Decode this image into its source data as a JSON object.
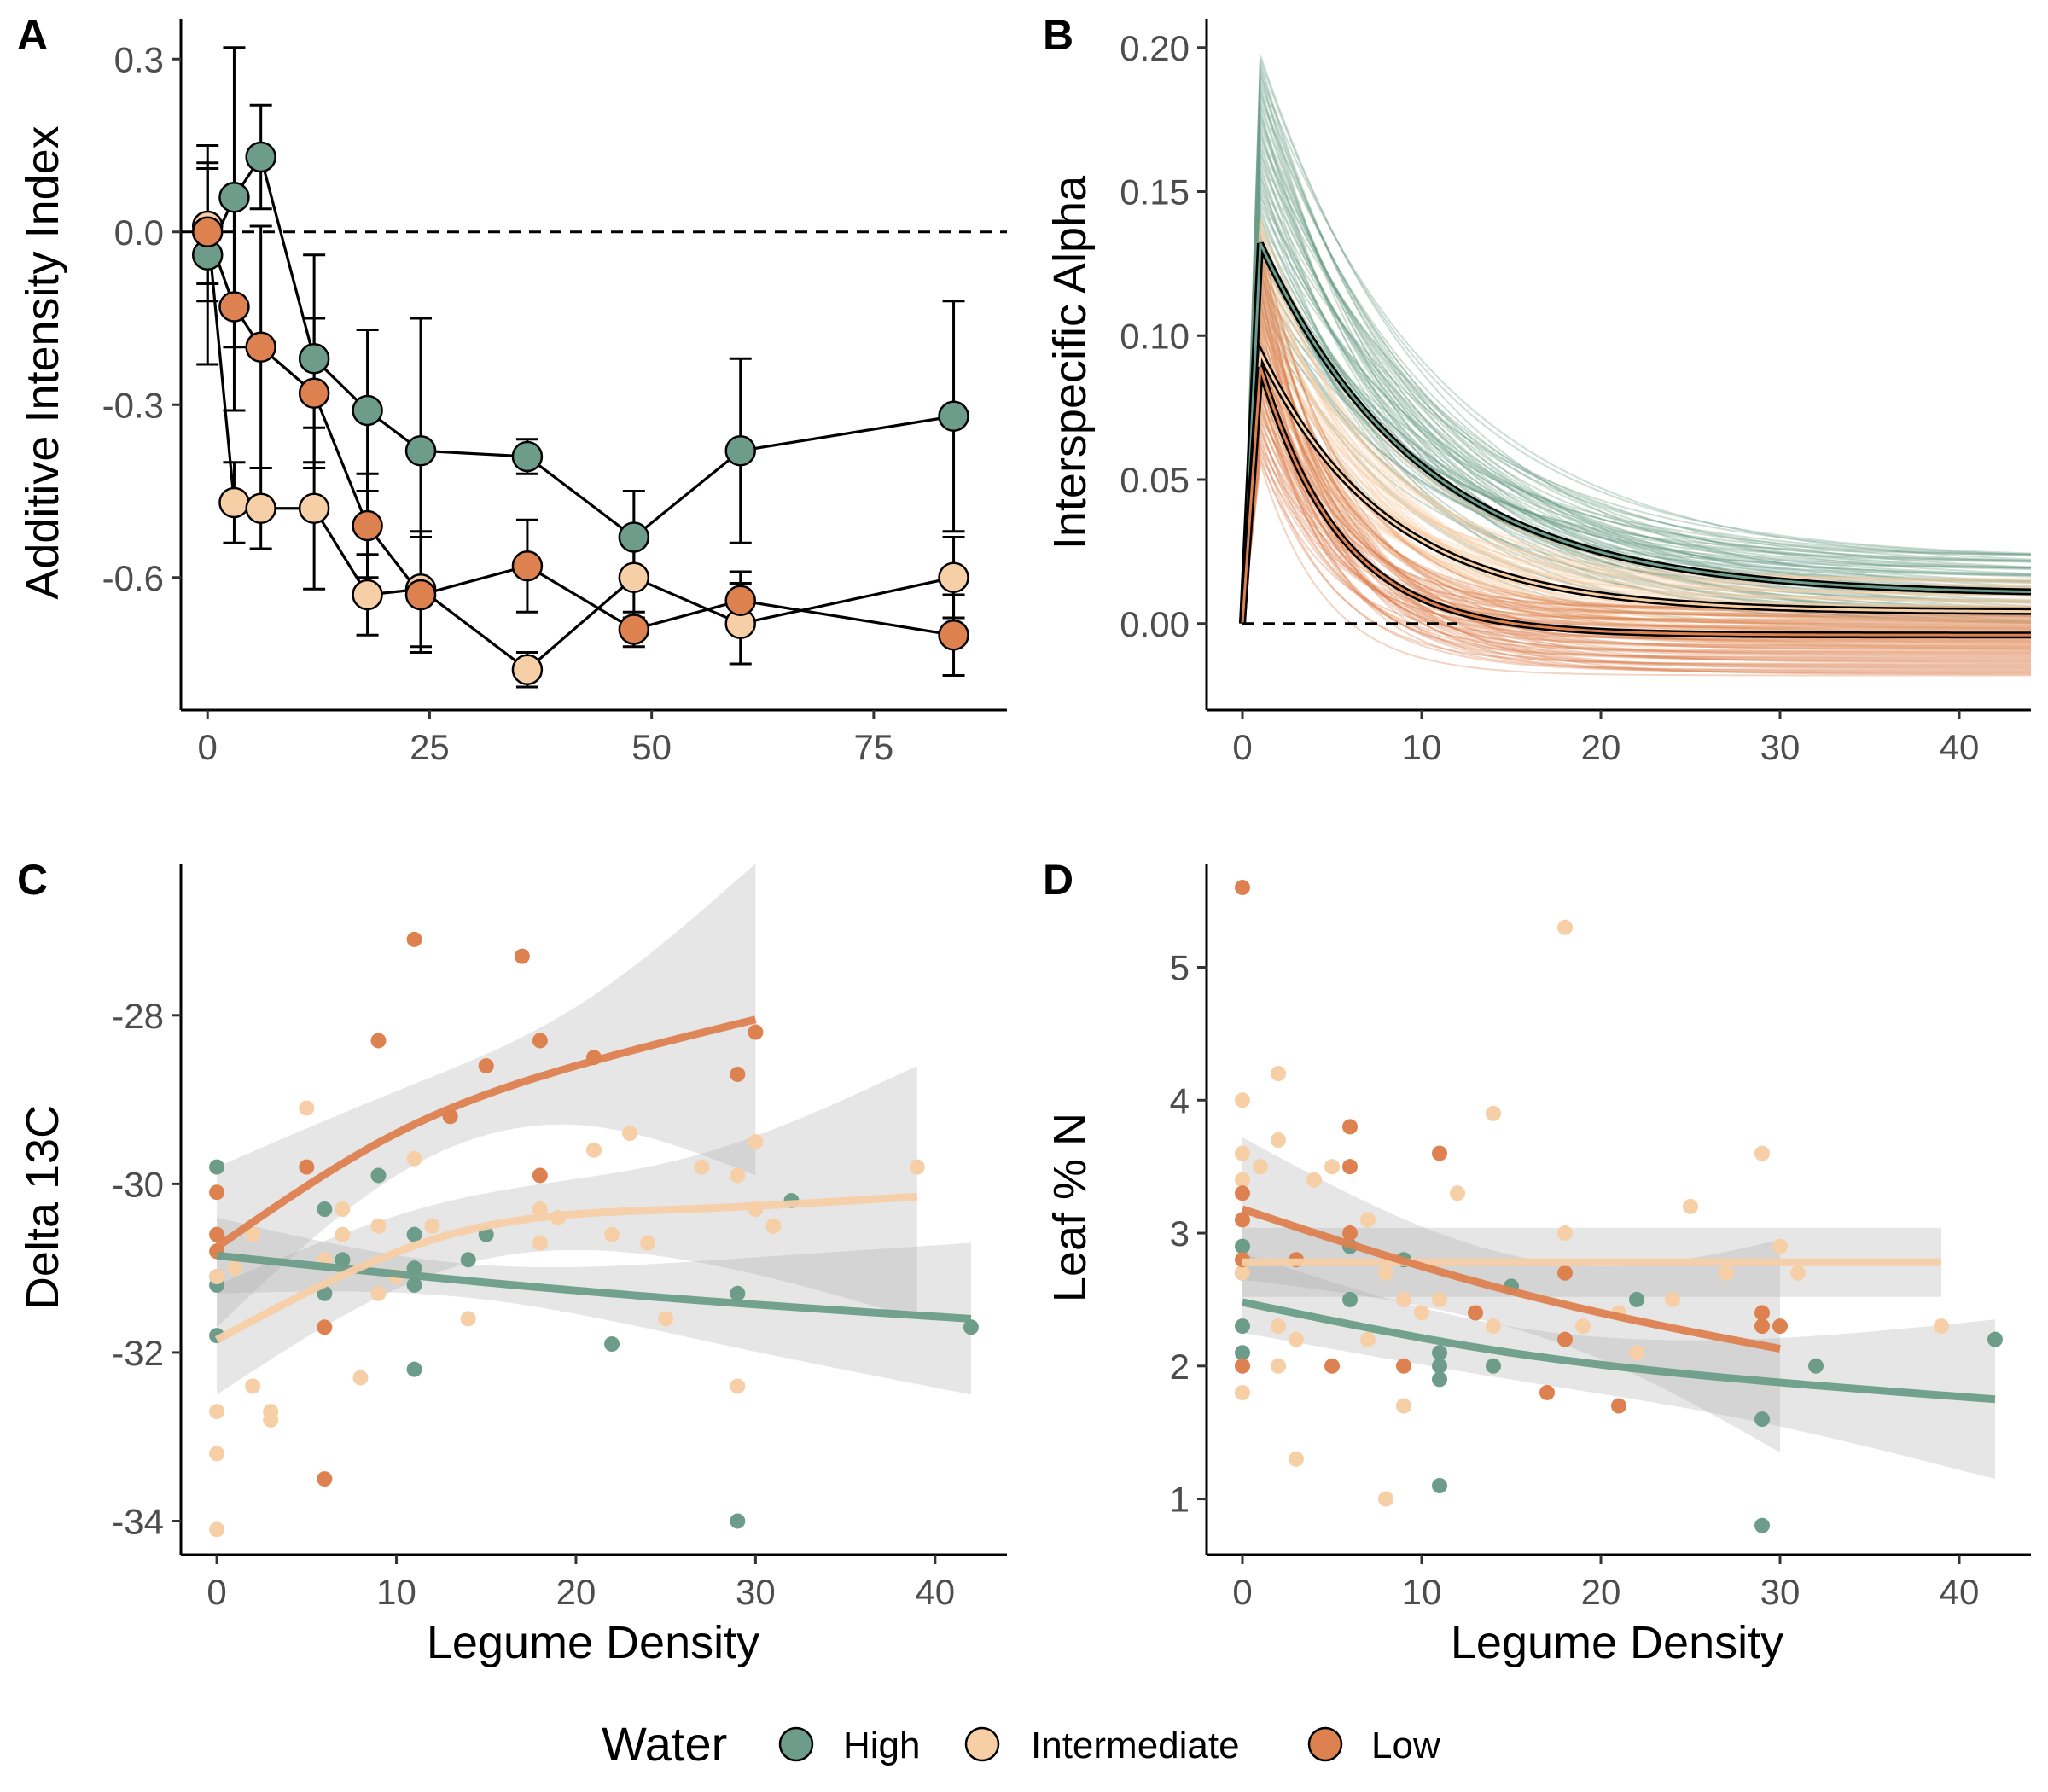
{
  "colors": {
    "High": "#6d9d8a",
    "Intermediate": "#f6cfa6",
    "Low": "#dd8150"
  },
  "legend": {
    "title": "Water",
    "entries": [
      "High",
      "Intermediate",
      "Low"
    ]
  },
  "panels": {
    "A": {
      "letter": "A",
      "ylabel": "Additive Intensity Index",
      "xlabel": ""
    },
    "B": {
      "letter": "B",
      "ylabel": "Interspecific Alpha",
      "xlabel": ""
    },
    "C": {
      "letter": "C",
      "ylabel": "Delta 13C",
      "xlabel": "Legume Density"
    },
    "D": {
      "letter": "D",
      "ylabel": "Leaf % N",
      "xlabel": "Legume Density"
    }
  },
  "chart_data": [
    {
      "id": "A",
      "type": "line",
      "xlim": [
        -3,
        90
      ],
      "ylim": [
        -0.83,
        0.37
      ],
      "xticks": [
        0,
        25,
        50,
        75
      ],
      "yticks": [
        0.3,
        0.0,
        -0.3,
        -0.6
      ],
      "ytick_labels": [
        "0.3",
        "0.0",
        "-0.3",
        "-0.6"
      ],
      "hline": 0,
      "series": [
        {
          "name": "High",
          "x": [
            0,
            3,
            6,
            12,
            18,
            24,
            36,
            48,
            60,
            84
          ],
          "y": [
            -0.04,
            0.06,
            0.13,
            -0.22,
            -0.31,
            -0.38,
            -0.39,
            -0.53,
            -0.38,
            -0.32
          ],
          "err": [
            0.19,
            0.26,
            0.09,
            0.18,
            0.14,
            0.23,
            0.03,
            0.08,
            0.16,
            0.2
          ]
        },
        {
          "name": "Intermediate",
          "x": [
            0,
            3,
            6,
            12,
            18,
            24,
            36,
            48,
            60,
            84
          ],
          "y": [
            0.01,
            -0.47,
            -0.48,
            -0.48,
            -0.63,
            -0.62,
            -0.76,
            -0.6,
            -0.68,
            -0.6
          ],
          "err": [
            0.1,
            0.07,
            0.07,
            0.14,
            0.07,
            0.1,
            0.03,
            0.07,
            0.07,
            0.07
          ]
        },
        {
          "name": "Low",
          "x": [
            0,
            3,
            6,
            12,
            18,
            24,
            36,
            48,
            60,
            84
          ],
          "y": [
            0.0,
            -0.13,
            -0.2,
            -0.28,
            -0.51,
            -0.63,
            -0.58,
            -0.69,
            -0.64,
            -0.7
          ],
          "err": [
            0.12,
            0.18,
            0.21,
            0.13,
            0.09,
            0.1,
            0.08,
            0.03,
            0.05,
            0.07
          ]
        }
      ]
    },
    {
      "id": "B",
      "type": "line",
      "xlim": [
        -2,
        44
      ],
      "ylim": [
        -0.03,
        0.21
      ],
      "xticks": [
        0,
        10,
        20,
        30,
        40
      ],
      "yticks": [
        0.0,
        0.05,
        0.1,
        0.15,
        0.2
      ],
      "ytick_labels": [
        "0.00",
        "0.05",
        "0.10",
        "0.15",
        "0.20"
      ],
      "hline": 0,
      "hline_xmax": 12,
      "series": [
        {
          "name": "High",
          "peak": 0.132,
          "asymptote": 0.01,
          "decay": 9,
          "band_peak": [
            0.105,
            0.198
          ],
          "band_asymptote": [
            -0.002,
            0.024
          ]
        },
        {
          "name": "Intermediate",
          "peak": 0.094,
          "asymptote": 0.004,
          "decay": 7,
          "band_peak": [
            0.07,
            0.142
          ],
          "band_asymptote": [
            -0.01,
            0.016
          ]
        },
        {
          "name": "Low",
          "peak": 0.089,
          "asymptote": -0.004,
          "decay": 4.5,
          "band_peak": [
            0.055,
            0.135
          ],
          "band_asymptote": [
            -0.018,
            0.006
          ]
        }
      ]
    },
    {
      "id": "C",
      "type": "scatter",
      "xlim": [
        -2,
        44
      ],
      "ylim": [
        -34.4,
        -26.2
      ],
      "xticks": [
        0,
        10,
        20,
        30,
        40
      ],
      "yticks": [
        -28,
        -30,
        -32,
        -34
      ],
      "ytick_labels": [
        "-28",
        "-30",
        "-32",
        "-34"
      ],
      "series": [
        {
          "name": "High",
          "points": [
            [
              0,
              -29.8
            ],
            [
              0,
              -31.1
            ],
            [
              0,
              -31.2
            ],
            [
              0,
              -31.8
            ],
            [
              6,
              -30.3
            ],
            [
              6,
              -31.3
            ],
            [
              7,
              -30.9
            ],
            [
              9,
              -29.9
            ],
            [
              11,
              -30.6
            ],
            [
              11,
              -31.0
            ],
            [
              11,
              -31.2
            ],
            [
              11,
              -32.2
            ],
            [
              14,
              -30.9
            ],
            [
              15,
              -30.6
            ],
            [
              22,
              -31.9
            ],
            [
              29,
              -31.3
            ],
            [
              29,
              -34.0
            ],
            [
              32,
              -30.2
            ],
            [
              42,
              -31.7
            ]
          ],
          "fit_x": [
            0,
            42
          ],
          "fit": [
            -30.85,
            -31.15,
            -31.4,
            -31.6
          ],
          "band": [
            [
              -31.3,
              -30.4
            ],
            [
              -31.35,
              -30.95
            ],
            [
              -31.9,
              -30.9
            ],
            [
              -32.5,
              -30.7
            ]
          ]
        },
        {
          "name": "Intermediate",
          "points": [
            [
              0,
              -31.1
            ],
            [
              0,
              -32.7
            ],
            [
              0,
              -33.2
            ],
            [
              0,
              -34.1
            ],
            [
              1,
              -31.0
            ],
            [
              2,
              -30.6
            ],
            [
              2,
              -32.4
            ],
            [
              3,
              -32.7
            ],
            [
              3,
              -32.8
            ],
            [
              5,
              -29.1
            ],
            [
              6,
              -30.9
            ],
            [
              7,
              -30.3
            ],
            [
              7,
              -30.6
            ],
            [
              8,
              -32.3
            ],
            [
              9,
              -30.5
            ],
            [
              9,
              -31.3
            ],
            [
              10,
              -31.1
            ],
            [
              11,
              -29.7
            ],
            [
              12,
              -30.5
            ],
            [
              14,
              -31.6
            ],
            [
              18,
              -30.3
            ],
            [
              18,
              -30.7
            ],
            [
              19,
              -30.4
            ],
            [
              21,
              -29.6
            ],
            [
              22,
              -30.6
            ],
            [
              23,
              -29.4
            ],
            [
              24,
              -30.7
            ],
            [
              25,
              -31.6
            ],
            [
              27,
              -29.8
            ],
            [
              29,
              -29.9
            ],
            [
              29,
              -32.4
            ],
            [
              30,
              -29.5
            ],
            [
              30,
              -30.3
            ],
            [
              31,
              -30.5
            ],
            [
              39,
              -29.8
            ]
          ],
          "fit_x": [
            0,
            39
          ],
          "fit": [
            -31.85,
            -30.6,
            -30.3,
            -30.15
          ],
          "band": [
            [
              -32.5,
              -31.2
            ],
            [
              -31.0,
              -30.2
            ],
            [
              -30.9,
              -29.7
            ],
            [
              -31.6,
              -28.6
            ]
          ]
        },
        {
          "name": "Low",
          "points": [
            [
              0,
              -30.1
            ],
            [
              0,
              -30.6
            ],
            [
              0,
              -30.8
            ],
            [
              5,
              -29.8
            ],
            [
              6,
              -31.7
            ],
            [
              6,
              -33.5
            ],
            [
              9,
              -28.3
            ],
            [
              11,
              -27.1
            ],
            [
              13,
              -29.2
            ],
            [
              15,
              -28.6
            ],
            [
              17,
              -27.3
            ],
            [
              18,
              -28.3
            ],
            [
              18,
              -29.9
            ],
            [
              21,
              -28.5
            ],
            [
              29,
              -28.7
            ],
            [
              30,
              -28.2
            ]
          ],
          "fit_x": [
            0,
            30
          ],
          "fit": [
            -30.75,
            -29.4,
            -28.6,
            -28.05
          ],
          "band": [
            [
              -31.7,
              -29.8
            ],
            [
              -29.9,
              -28.9
            ],
            [
              -29.3,
              -27.9
            ],
            [
              -29.9,
              -26.2
            ]
          ]
        }
      ]
    },
    {
      "id": "D",
      "type": "scatter",
      "xlim": [
        -2,
        44
      ],
      "ylim": [
        0.58,
        5.78
      ],
      "xticks": [
        0,
        10,
        20,
        30,
        40
      ],
      "yticks": [
        1,
        2,
        3,
        4,
        5
      ],
      "ytick_labels": [
        "1",
        "2",
        "3",
        "4",
        "5"
      ],
      "series": [
        {
          "name": "High",
          "points": [
            [
              0,
              2.9
            ],
            [
              0,
              2.7
            ],
            [
              0,
              2.3
            ],
            [
              0,
              2.1
            ],
            [
              6,
              2.9
            ],
            [
              6,
              2.5
            ],
            [
              9,
              2.8
            ],
            [
              11,
              2.1
            ],
            [
              11,
              2.0
            ],
            [
              11,
              1.9
            ],
            [
              11,
              1.1
            ],
            [
              14,
              2.0
            ],
            [
              15,
              2.6
            ],
            [
              22,
              2.5
            ],
            [
              29,
              1.6
            ],
            [
              29,
              0.8
            ],
            [
              32,
              2.0
            ],
            [
              42,
              2.2
            ]
          ],
          "fit_x": [
            0,
            42
          ],
          "fit": [
            2.48,
            2.12,
            1.9,
            1.75
          ],
          "band": [
            [
              2.25,
              2.85
            ],
            [
              1.92,
              2.32
            ],
            [
              1.6,
              2.2
            ],
            [
              1.15,
              2.35
            ]
          ]
        },
        {
          "name": "Intermediate",
          "points": [
            [
              0,
              4.0
            ],
            [
              0,
              3.6
            ],
            [
              0,
              3.4
            ],
            [
              0,
              3.1
            ],
            [
              0,
              2.7
            ],
            [
              0,
              1.8
            ],
            [
              1,
              3.5
            ],
            [
              2,
              4.2
            ],
            [
              2,
              3.7
            ],
            [
              2,
              2.3
            ],
            [
              2,
              2.0
            ],
            [
              3,
              2.2
            ],
            [
              3,
              1.3
            ],
            [
              4,
              3.4
            ],
            [
              5,
              3.5
            ],
            [
              6,
              3.0
            ],
            [
              7,
              3.1
            ],
            [
              7,
              2.2
            ],
            [
              8,
              2.7
            ],
            [
              8,
              1.0
            ],
            [
              9,
              2.5
            ],
            [
              9,
              1.7
            ],
            [
              10,
              2.4
            ],
            [
              11,
              2.5
            ],
            [
              12,
              3.3
            ],
            [
              14,
              3.9
            ],
            [
              14,
              2.3
            ],
            [
              18,
              5.3
            ],
            [
              18,
              3.0
            ],
            [
              19,
              2.3
            ],
            [
              21,
              2.4
            ],
            [
              22,
              2.1
            ],
            [
              24,
              2.5
            ],
            [
              25,
              3.2
            ],
            [
              27,
              2.7
            ],
            [
              29,
              3.6
            ],
            [
              29,
              2.3
            ],
            [
              30,
              2.9
            ],
            [
              31,
              2.7
            ],
            [
              39,
              2.3
            ]
          ],
          "fit_x": [
            0,
            39
          ],
          "fit": [
            2.78,
            2.78,
            2.78,
            2.78
          ],
          "band": [
            [
              2.52,
              3.04
            ],
            [
              2.52,
              3.04
            ],
            [
              2.52,
              3.04
            ],
            [
              2.52,
              3.04
            ]
          ]
        },
        {
          "name": "Low",
          "points": [
            [
              0,
              5.6
            ],
            [
              0,
              3.3
            ],
            [
              0,
              3.1
            ],
            [
              0,
              2.8
            ],
            [
              0,
              2.0
            ],
            [
              3,
              2.8
            ],
            [
              5,
              2.0
            ],
            [
              6,
              3.8
            ],
            [
              6,
              3.5
            ],
            [
              6,
              3.0
            ],
            [
              9,
              2.0
            ],
            [
              11,
              3.6
            ],
            [
              13,
              2.4
            ],
            [
              17,
              1.8
            ],
            [
              18,
              2.7
            ],
            [
              18,
              2.2
            ],
            [
              21,
              1.7
            ],
            [
              29,
              2.4
            ],
            [
              29,
              2.3
            ],
            [
              30,
              2.3
            ]
          ],
          "fit_x": [
            0,
            30
          ],
          "fit": [
            3.18,
            2.75,
            2.4,
            2.13
          ],
          "band": [
            [
              2.65,
              3.72
            ],
            [
              2.45,
              3.05
            ],
            [
              2.05,
              2.75
            ],
            [
              1.35,
              2.95
            ]
          ]
        }
      ]
    }
  ]
}
